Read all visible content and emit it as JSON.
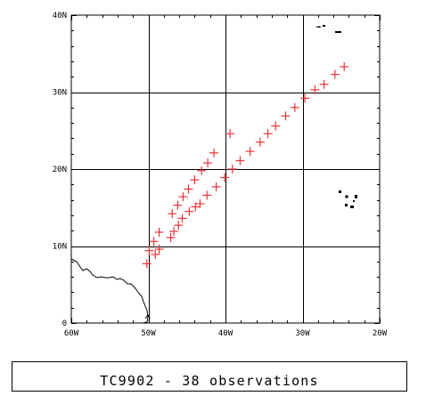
{
  "caption": "TC9902 - 38 observations",
  "colors": {
    "marker": "#e8343a",
    "grid": "#000000",
    "coastline": "#000000",
    "background": "#ffffff"
  },
  "chart_data": {
    "type": "scatter",
    "title": "",
    "xlabel": "",
    "ylabel": "",
    "xlim": [
      -60,
      -20
    ],
    "ylim": [
      0,
      40
    ],
    "grid": true,
    "legend": "none",
    "x_ticks": [
      {
        "value": -60,
        "label": "60W"
      },
      {
        "value": -50,
        "label": "50W"
      },
      {
        "value": -40,
        "label": "40W"
      },
      {
        "value": -30,
        "label": "30W"
      },
      {
        "value": -20,
        "label": "20W"
      }
    ],
    "y_ticks": [
      {
        "value": 0,
        "label": "0"
      },
      {
        "value": 10,
        "label": "10N"
      },
      {
        "value": 20,
        "label": "20N"
      },
      {
        "value": 30,
        "label": "30N"
      },
      {
        "value": 40,
        "label": "40N"
      }
    ],
    "marker": "plus",
    "points": [
      {
        "lon": -50.2,
        "lat": 7.7
      },
      {
        "lon": -49.9,
        "lat": 9.4
      },
      {
        "lon": -49.3,
        "lat": 10.6
      },
      {
        "lon": -48.6,
        "lat": 11.8
      },
      {
        "lon": -49.1,
        "lat": 8.9
      },
      {
        "lon": -48.6,
        "lat": 9.6
      },
      {
        "lon": -47.1,
        "lat": 11.1
      },
      {
        "lon": -46.7,
        "lat": 11.9
      },
      {
        "lon": -46.1,
        "lat": 12.7
      },
      {
        "lon": -45.6,
        "lat": 13.6
      },
      {
        "lon": -44.7,
        "lat": 14.5
      },
      {
        "lon": -43.9,
        "lat": 15.1
      },
      {
        "lon": -43.3,
        "lat": 15.5
      },
      {
        "lon": -42.4,
        "lat": 16.6
      },
      {
        "lon": -41.2,
        "lat": 17.7
      },
      {
        "lon": -40.1,
        "lat": 18.9
      },
      {
        "lon": -39.1,
        "lat": 20.0
      },
      {
        "lon": -38.1,
        "lat": 21.1
      },
      {
        "lon": -36.8,
        "lat": 22.3
      },
      {
        "lon": -35.5,
        "lat": 23.5
      },
      {
        "lon": -34.5,
        "lat": 24.6
      },
      {
        "lon": -33.5,
        "lat": 25.6
      },
      {
        "lon": -32.2,
        "lat": 26.9
      },
      {
        "lon": -31.0,
        "lat": 28.0
      },
      {
        "lon": -29.7,
        "lat": 29.2
      },
      {
        "lon": -28.4,
        "lat": 30.3
      },
      {
        "lon": -27.2,
        "lat": 31.0
      },
      {
        "lon": -25.8,
        "lat": 32.3
      },
      {
        "lon": -24.6,
        "lat": 33.3
      },
      {
        "lon": -46.9,
        "lat": 14.2
      },
      {
        "lon": -46.2,
        "lat": 15.3
      },
      {
        "lon": -45.5,
        "lat": 16.4
      },
      {
        "lon": -44.8,
        "lat": 17.4
      },
      {
        "lon": -44.0,
        "lat": 18.6
      },
      {
        "lon": -43.1,
        "lat": 19.8
      },
      {
        "lon": -42.3,
        "lat": 20.8
      },
      {
        "lon": -41.5,
        "lat": 22.1
      },
      {
        "lon": -39.4,
        "lat": 24.6
      }
    ]
  }
}
